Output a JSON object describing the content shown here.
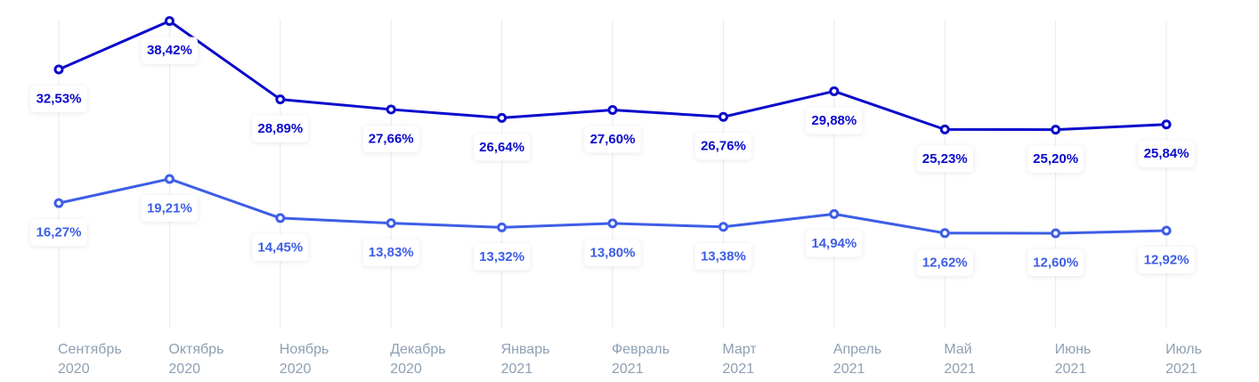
{
  "chart_data": {
    "type": "line",
    "title": "",
    "xlabel": "",
    "ylabel": "",
    "ylim": [
      10,
      40
    ],
    "grid": "vertical lines only",
    "legend": "none",
    "categories": [
      [
        "Сентябрь",
        "2020"
      ],
      [
        "Октябрь",
        "2020"
      ],
      [
        "Ноябрь",
        "2020"
      ],
      [
        "Декабрь",
        "2020"
      ],
      [
        "Январь",
        "2021"
      ],
      [
        "Февраль",
        "2021"
      ],
      [
        "Март",
        "2021"
      ],
      [
        "Апрель",
        "2021"
      ],
      [
        "Май",
        "2021"
      ],
      [
        "Июнь",
        "2021"
      ],
      [
        "Июль",
        "2021"
      ]
    ],
    "series": [
      {
        "color": "#0a0acc",
        "values": [
          32.53,
          38.42,
          28.89,
          27.66,
          26.64,
          27.6,
          26.76,
          29.88,
          25.23,
          25.2,
          25.84
        ],
        "labels": [
          "32,53%",
          "38,42%",
          "28,89%",
          "27,66%",
          "26,64%",
          "27,60%",
          "26,76%",
          "29,88%",
          "25,23%",
          "25,20%",
          "25,84%"
        ]
      },
      {
        "color": "#3d5ee6",
        "values": [
          16.27,
          19.21,
          14.45,
          13.83,
          13.32,
          13.8,
          13.38,
          14.94,
          12.62,
          12.6,
          12.92
        ],
        "labels": [
          "16,27%",
          "19,21%",
          "14,45%",
          "13,83%",
          "13,32%",
          "13,80%",
          "13,38%",
          "14,94%",
          "12,62%",
          "12,60%",
          "12,92%"
        ]
      }
    ]
  }
}
